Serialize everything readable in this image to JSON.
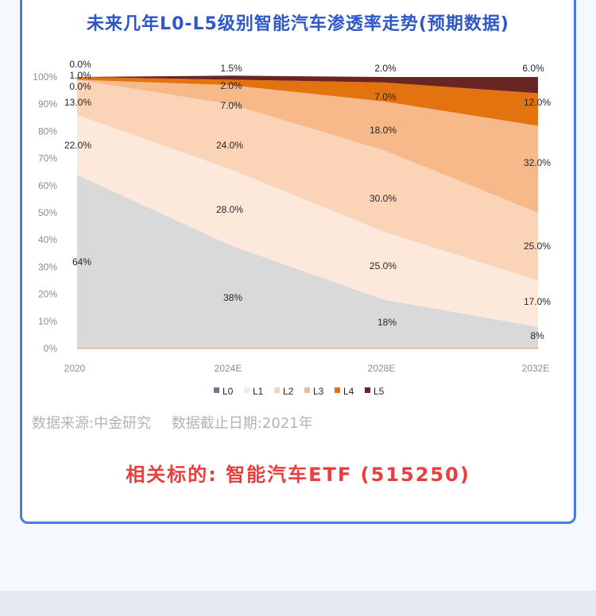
{
  "page": {
    "title": "未来几年L0-L5级别智能汽车渗透率走势(预期数据)",
    "source_label": "数据来源:中金研究",
    "cutoff_label": "数据截止日期:2021年",
    "related_label": "相关标的: 智能汽车ETF (515250)"
  },
  "chart_data": {
    "type": "area",
    "stacked": true,
    "title": "未来几年L0-L5级别智能汽车渗透率走势(预期数据)",
    "categories": [
      "2020",
      "2024E",
      "2028E",
      "2032E"
    ],
    "ylim": [
      0,
      100
    ],
    "yticks": [
      "0%",
      "10%",
      "20%",
      "30%",
      "40%",
      "50%",
      "60%",
      "70%",
      "80%",
      "90%",
      "100%"
    ],
    "legend_position": "bottom",
    "series": [
      {
        "name": "L0",
        "values": [
          64,
          38,
          18,
          8
        ],
        "labels": [
          "64%",
          "38%",
          "18%",
          "8%"
        ],
        "color": "#d9d9d9",
        "legend_color": "#6b7a8f"
      },
      {
        "name": "L1",
        "values": [
          22,
          28,
          25,
          17
        ],
        "labels": [
          "22.0%",
          "28.0%",
          "25.0%",
          "17.0%"
        ],
        "color": "#fde9dc"
      },
      {
        "name": "L2",
        "values": [
          13,
          24,
          30,
          25
        ],
        "labels": [
          "13.0%",
          "24.0%",
          "30.0%",
          "25.0%"
        ],
        "color": "#fbd4b8"
      },
      {
        "name": "L3",
        "values": [
          0,
          7,
          18,
          32
        ],
        "labels": [
          "0.0%",
          "7.0%",
          "18.0%",
          "32.0%"
        ],
        "color": "#f8b98a"
      },
      {
        "name": "L4",
        "values": [
          1,
          2,
          7,
          12
        ],
        "labels": [
          "1.0%",
          "2.0%",
          "7.0%",
          "12.0%"
        ],
        "color": "#e2730f"
      },
      {
        "name": "L5",
        "values": [
          0,
          1.5,
          2,
          6
        ],
        "labels": [
          "0.0%",
          "1.5%",
          "2.0%",
          "6.0%"
        ],
        "color": "#6b2424"
      }
    ]
  }
}
